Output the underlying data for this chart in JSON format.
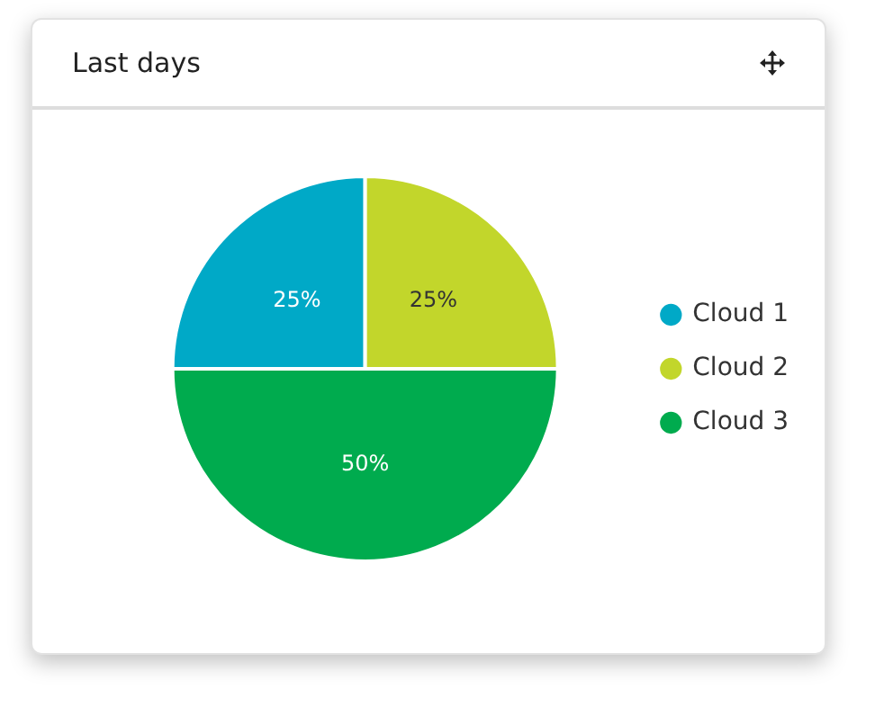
{
  "chart_data": {
    "type": "pie",
    "title": "Last days",
    "categories": [
      "Cloud 1",
      "Cloud 2",
      "Cloud 3"
    ],
    "values": [
      25,
      25,
      50
    ],
    "colors": [
      "#00a9c7",
      "#c2d62b",
      "#00ab4e"
    ],
    "value_labels": [
      "25%",
      "25%",
      "50%"
    ],
    "legend": "right"
  }
}
